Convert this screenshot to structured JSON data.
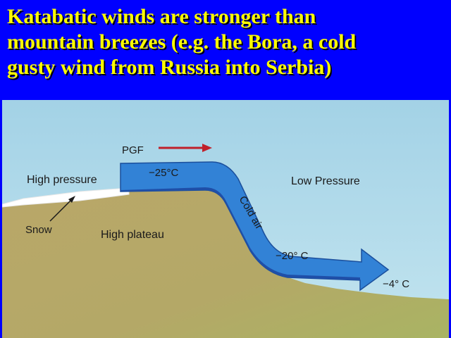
{
  "slide": {
    "title_lines": [
      "Katabatic winds are stronger than",
      "mountain breezes (e.g. the Bora, a cold",
      "gusty wind from Russia into Serbia)"
    ]
  },
  "diagram": {
    "labels": {
      "pgf": "PGF",
      "high_pressure": "High pressure",
      "low_pressure": "Low Pressure",
      "snow": "Snow",
      "high_plateau": "High plateau",
      "cold_air": "Cold air",
      "temp_top": "−25°C",
      "temp_mid": "−20° C",
      "temp_bottom": "−4° C"
    },
    "colors": {
      "title_text": "#ffff00",
      "background": "#0000ff",
      "sky": "#a9d6e8",
      "ground": "#b7a66a",
      "arrow": "#2f7fd1",
      "pgf_arrow": "#c0202a",
      "snow": "#ffffff"
    }
  }
}
